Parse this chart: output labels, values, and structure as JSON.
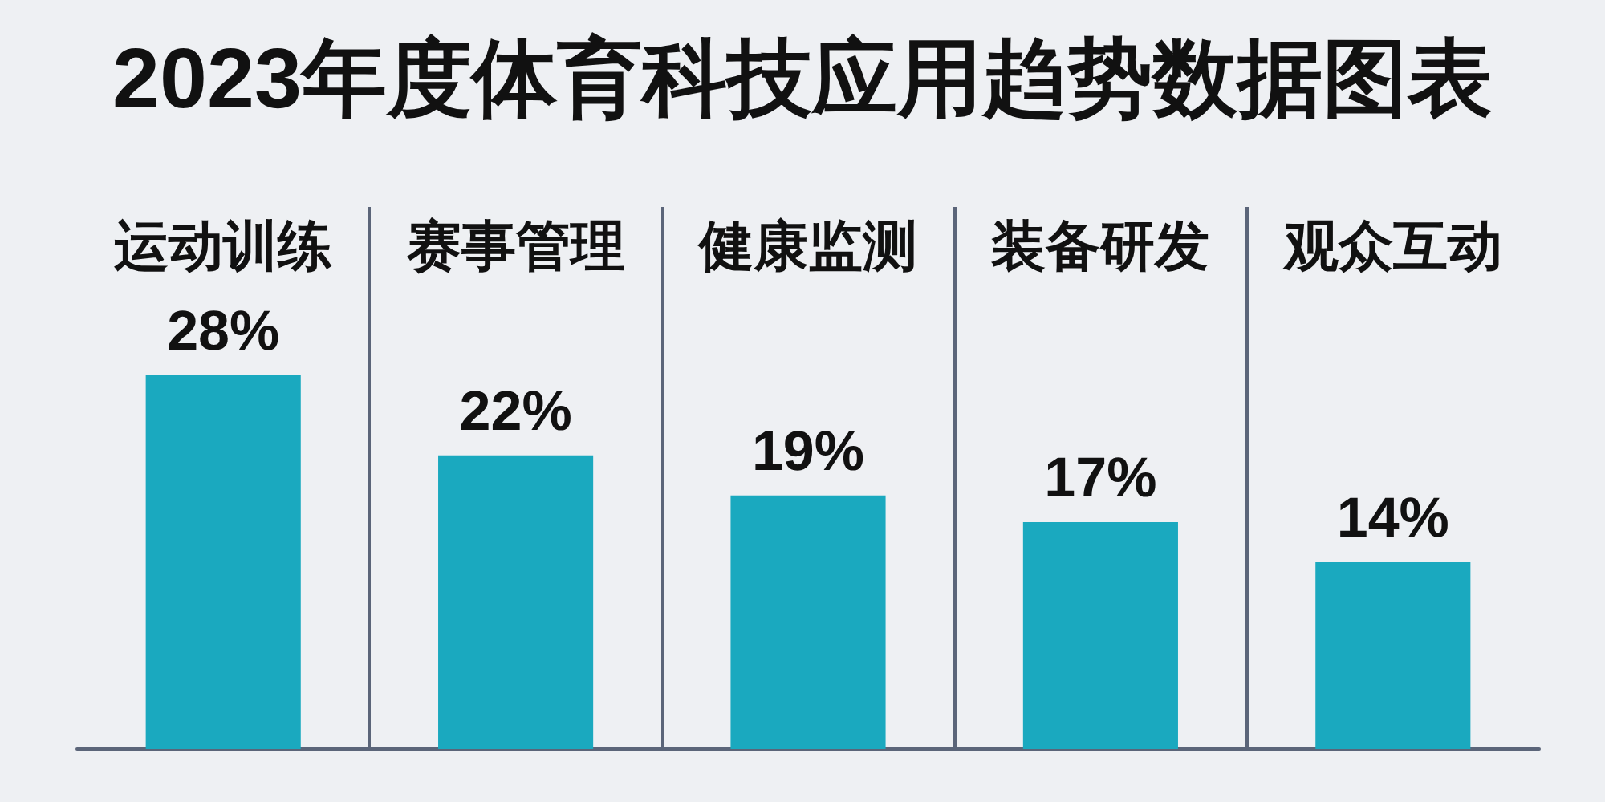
{
  "chart_data": {
    "type": "bar",
    "title": "2023年度体育科技应用趋势数据图表",
    "categories": [
      "运动训练",
      "赛事管理",
      "健康监测",
      "装备研发",
      "观众互动"
    ],
    "values": [
      28,
      22,
      19,
      17,
      14
    ],
    "value_labels": [
      "28%",
      "22%",
      "19%",
      "17%",
      "14%"
    ],
    "color": "#1aa9bf",
    "grid": "x"
  }
}
